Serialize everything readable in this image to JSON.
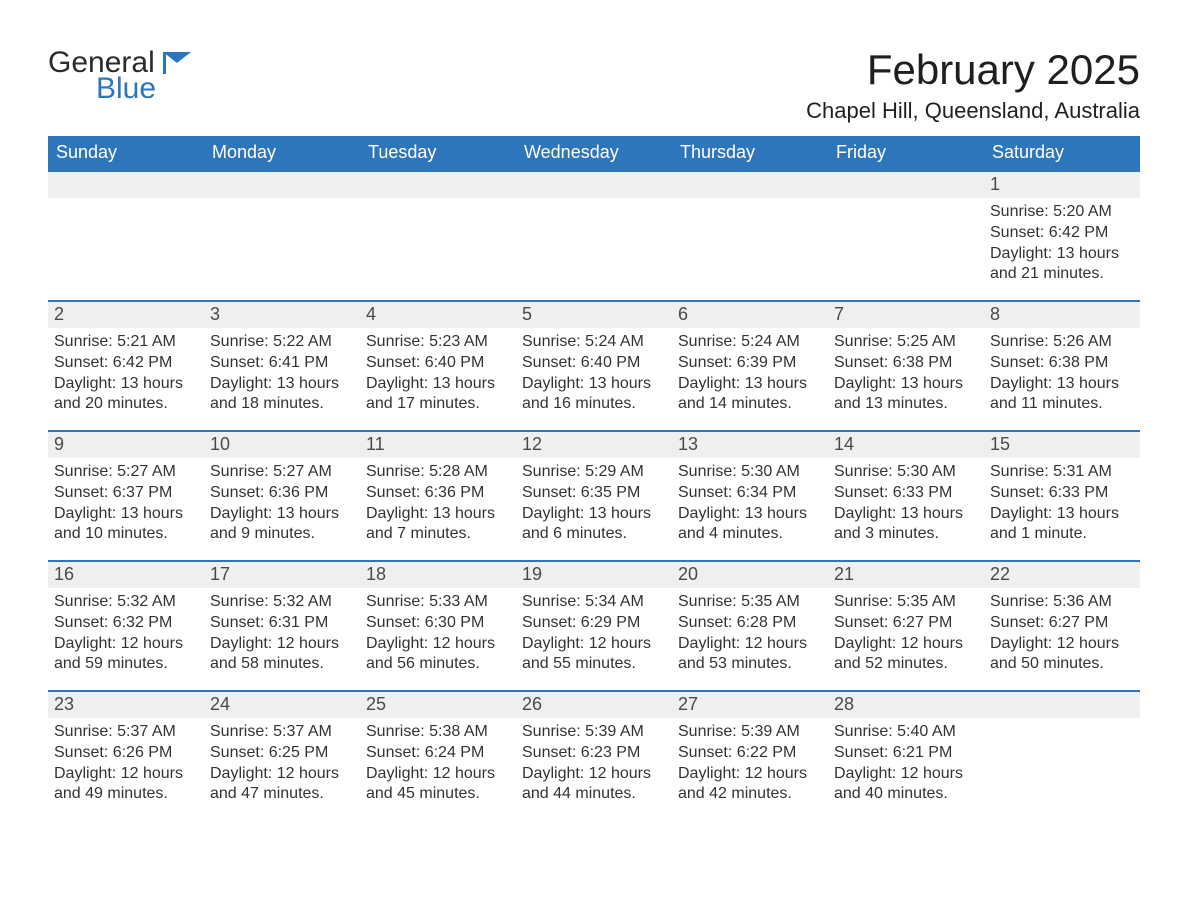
{
  "brand": {
    "word1": "General",
    "word2": "Blue",
    "accent_color": "#2d76bb"
  },
  "title": "February 2025",
  "location": "Chapel Hill, Queensland, Australia",
  "weekdays": [
    "Sunday",
    "Monday",
    "Tuesday",
    "Wednesday",
    "Thursday",
    "Friday",
    "Saturday"
  ],
  "colors": {
    "header_bg": "#2d76bb",
    "daynum_bg": "#efefef",
    "text": "#333333",
    "background": "#ffffff",
    "week_border": "#2d76bb"
  },
  "typography": {
    "title_fontsize_pt": 32,
    "location_fontsize_pt": 17,
    "weekday_fontsize_pt": 14,
    "daynum_fontsize_pt": 14,
    "body_fontsize_pt": 12,
    "font_family": "Segoe UI / Arial"
  },
  "layout": {
    "columns": 7,
    "rows": 5,
    "first_weekday_index": 6
  },
  "weeks": [
    [
      null,
      null,
      null,
      null,
      null,
      null,
      {
        "day": "1",
        "sunrise": "Sunrise: 5:20 AM",
        "sunset": "Sunset: 6:42 PM",
        "daylight1": "Daylight: 13 hours",
        "daylight2": "and 21 minutes."
      }
    ],
    [
      {
        "day": "2",
        "sunrise": "Sunrise: 5:21 AM",
        "sunset": "Sunset: 6:42 PM",
        "daylight1": "Daylight: 13 hours",
        "daylight2": "and 20 minutes."
      },
      {
        "day": "3",
        "sunrise": "Sunrise: 5:22 AM",
        "sunset": "Sunset: 6:41 PM",
        "daylight1": "Daylight: 13 hours",
        "daylight2": "and 18 minutes."
      },
      {
        "day": "4",
        "sunrise": "Sunrise: 5:23 AM",
        "sunset": "Sunset: 6:40 PM",
        "daylight1": "Daylight: 13 hours",
        "daylight2": "and 17 minutes."
      },
      {
        "day": "5",
        "sunrise": "Sunrise: 5:24 AM",
        "sunset": "Sunset: 6:40 PM",
        "daylight1": "Daylight: 13 hours",
        "daylight2": "and 16 minutes."
      },
      {
        "day": "6",
        "sunrise": "Sunrise: 5:24 AM",
        "sunset": "Sunset: 6:39 PM",
        "daylight1": "Daylight: 13 hours",
        "daylight2": "and 14 minutes."
      },
      {
        "day": "7",
        "sunrise": "Sunrise: 5:25 AM",
        "sunset": "Sunset: 6:38 PM",
        "daylight1": "Daylight: 13 hours",
        "daylight2": "and 13 minutes."
      },
      {
        "day": "8",
        "sunrise": "Sunrise: 5:26 AM",
        "sunset": "Sunset: 6:38 PM",
        "daylight1": "Daylight: 13 hours",
        "daylight2": "and 11 minutes."
      }
    ],
    [
      {
        "day": "9",
        "sunrise": "Sunrise: 5:27 AM",
        "sunset": "Sunset: 6:37 PM",
        "daylight1": "Daylight: 13 hours",
        "daylight2": "and 10 minutes."
      },
      {
        "day": "10",
        "sunrise": "Sunrise: 5:27 AM",
        "sunset": "Sunset: 6:36 PM",
        "daylight1": "Daylight: 13 hours",
        "daylight2": "and 9 minutes."
      },
      {
        "day": "11",
        "sunrise": "Sunrise: 5:28 AM",
        "sunset": "Sunset: 6:36 PM",
        "daylight1": "Daylight: 13 hours",
        "daylight2": "and 7 minutes."
      },
      {
        "day": "12",
        "sunrise": "Sunrise: 5:29 AM",
        "sunset": "Sunset: 6:35 PM",
        "daylight1": "Daylight: 13 hours",
        "daylight2": "and 6 minutes."
      },
      {
        "day": "13",
        "sunrise": "Sunrise: 5:30 AM",
        "sunset": "Sunset: 6:34 PM",
        "daylight1": "Daylight: 13 hours",
        "daylight2": "and 4 minutes."
      },
      {
        "day": "14",
        "sunrise": "Sunrise: 5:30 AM",
        "sunset": "Sunset: 6:33 PM",
        "daylight1": "Daylight: 13 hours",
        "daylight2": "and 3 minutes."
      },
      {
        "day": "15",
        "sunrise": "Sunrise: 5:31 AM",
        "sunset": "Sunset: 6:33 PM",
        "daylight1": "Daylight: 13 hours",
        "daylight2": "and 1 minute."
      }
    ],
    [
      {
        "day": "16",
        "sunrise": "Sunrise: 5:32 AM",
        "sunset": "Sunset: 6:32 PM",
        "daylight1": "Daylight: 12 hours",
        "daylight2": "and 59 minutes."
      },
      {
        "day": "17",
        "sunrise": "Sunrise: 5:32 AM",
        "sunset": "Sunset: 6:31 PM",
        "daylight1": "Daylight: 12 hours",
        "daylight2": "and 58 minutes."
      },
      {
        "day": "18",
        "sunrise": "Sunrise: 5:33 AM",
        "sunset": "Sunset: 6:30 PM",
        "daylight1": "Daylight: 12 hours",
        "daylight2": "and 56 minutes."
      },
      {
        "day": "19",
        "sunrise": "Sunrise: 5:34 AM",
        "sunset": "Sunset: 6:29 PM",
        "daylight1": "Daylight: 12 hours",
        "daylight2": "and 55 minutes."
      },
      {
        "day": "20",
        "sunrise": "Sunrise: 5:35 AM",
        "sunset": "Sunset: 6:28 PM",
        "daylight1": "Daylight: 12 hours",
        "daylight2": "and 53 minutes."
      },
      {
        "day": "21",
        "sunrise": "Sunrise: 5:35 AM",
        "sunset": "Sunset: 6:27 PM",
        "daylight1": "Daylight: 12 hours",
        "daylight2": "and 52 minutes."
      },
      {
        "day": "22",
        "sunrise": "Sunrise: 5:36 AM",
        "sunset": "Sunset: 6:27 PM",
        "daylight1": "Daylight: 12 hours",
        "daylight2": "and 50 minutes."
      }
    ],
    [
      {
        "day": "23",
        "sunrise": "Sunrise: 5:37 AM",
        "sunset": "Sunset: 6:26 PM",
        "daylight1": "Daylight: 12 hours",
        "daylight2": "and 49 minutes."
      },
      {
        "day": "24",
        "sunrise": "Sunrise: 5:37 AM",
        "sunset": "Sunset: 6:25 PM",
        "daylight1": "Daylight: 12 hours",
        "daylight2": "and 47 minutes."
      },
      {
        "day": "25",
        "sunrise": "Sunrise: 5:38 AM",
        "sunset": "Sunset: 6:24 PM",
        "daylight1": "Daylight: 12 hours",
        "daylight2": "and 45 minutes."
      },
      {
        "day": "26",
        "sunrise": "Sunrise: 5:39 AM",
        "sunset": "Sunset: 6:23 PM",
        "daylight1": "Daylight: 12 hours",
        "daylight2": "and 44 minutes."
      },
      {
        "day": "27",
        "sunrise": "Sunrise: 5:39 AM",
        "sunset": "Sunset: 6:22 PM",
        "daylight1": "Daylight: 12 hours",
        "daylight2": "and 42 minutes."
      },
      {
        "day": "28",
        "sunrise": "Sunrise: 5:40 AM",
        "sunset": "Sunset: 6:21 PM",
        "daylight1": "Daylight: 12 hours",
        "daylight2": "and 40 minutes."
      },
      null
    ]
  ]
}
